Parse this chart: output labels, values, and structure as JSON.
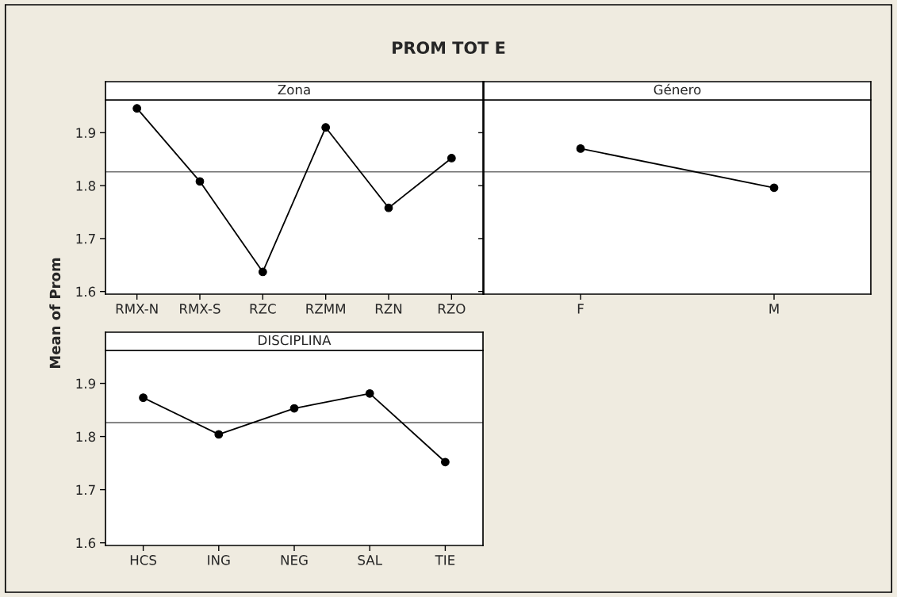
{
  "chart_data": [
    {
      "type": "line",
      "title": "PROM TOT E",
      "ylabel": "Mean of Prom",
      "subtitle": "Zona",
      "categories": [
        "RMX-N",
        "RMX-S",
        "RZC",
        "RZMM",
        "RZN",
        "RZO"
      ],
      "series": [
        {
          "color": "#000000",
          "values": [
            1.946,
            1.808,
            1.637,
            1.91,
            1.758,
            1.852
          ]
        }
      ],
      "ylim": [
        1.595,
        1.962
      ],
      "yticks": [
        1.6,
        1.7,
        1.8,
        1.9
      ],
      "marker": "circle",
      "line_style": "solid",
      "ref_lines": [
        {
          "axis": "y",
          "value": 1.826,
          "color": "#707070"
        }
      ]
    },
    {
      "type": "line",
      "subtitle": "Género",
      "categories": [
        "F",
        "M"
      ],
      "series": [
        {
          "color": "#000000",
          "values": [
            1.87,
            1.796
          ]
        }
      ],
      "ylim": [
        1.595,
        1.962
      ],
      "yticks": [
        1.6,
        1.7,
        1.8,
        1.9
      ],
      "tick_labels": "x",
      "marker": "circle",
      "line_style": "solid",
      "ref_lines": [
        {
          "axis": "y",
          "value": 1.826,
          "color": "#707070"
        }
      ]
    },
    {
      "type": "line",
      "subtitle": "DISCIPLINA",
      "categories": [
        "HCS",
        "ING",
        "NEG",
        "SAL",
        "TIE"
      ],
      "series": [
        {
          "color": "#000000",
          "values": [
            1.873,
            1.804,
            1.853,
            1.881,
            1.752
          ]
        }
      ],
      "ylim": [
        1.595,
        1.962
      ],
      "yticks": [
        1.6,
        1.7,
        1.8,
        1.9
      ],
      "marker": "circle",
      "line_style": "solid",
      "ref_lines": [
        {
          "axis": "y",
          "value": 1.826,
          "color": "#707070"
        }
      ]
    }
  ]
}
